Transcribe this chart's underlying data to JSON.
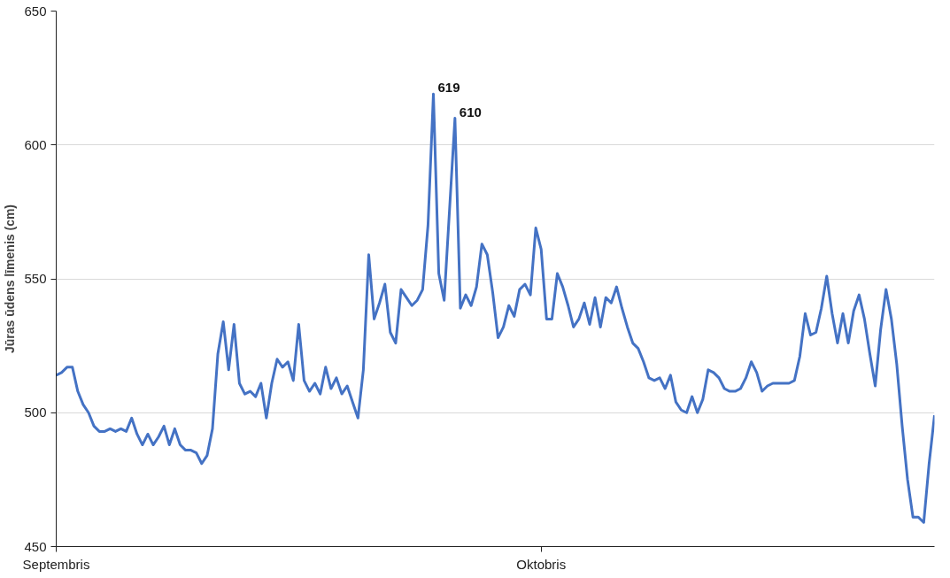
{
  "chart_data": {
    "type": "line",
    "ylabel": "Jūras ūdens līmenis (cm)",
    "categories": [
      "Septembris",
      null,
      null,
      null,
      null,
      null,
      null,
      null,
      null,
      null,
      null,
      null,
      null,
      null,
      null,
      null,
      null,
      null,
      null,
      null,
      null,
      null,
      null,
      null,
      null,
      null,
      null,
      null,
      null,
      null,
      null,
      null,
      null,
      null,
      null,
      null,
      null,
      null,
      null,
      null,
      null,
      null,
      null,
      null,
      null,
      null,
      null,
      null,
      null,
      null,
      null,
      null,
      null,
      null,
      null,
      null,
      null,
      null,
      null,
      null,
      null,
      null,
      null,
      null,
      null,
      null,
      null,
      null,
      null,
      null,
      null,
      null,
      null,
      null,
      null,
      null,
      null,
      null,
      null,
      null,
      null,
      null,
      null,
      null,
      null,
      null,
      null,
      null,
      null,
      null,
      "Oktobris",
      null,
      null,
      null,
      null,
      null,
      null,
      null,
      null,
      null,
      null,
      null,
      null,
      null,
      null,
      null,
      null,
      null,
      null,
      null,
      null,
      null,
      null,
      null,
      null,
      null,
      null,
      null,
      null,
      null,
      null,
      null,
      null,
      null,
      null,
      null,
      null,
      null,
      null,
      null,
      null,
      null,
      null,
      null,
      null,
      null,
      null,
      null,
      null,
      null,
      null,
      null,
      null,
      null,
      null,
      null,
      null,
      null,
      null,
      null,
      null,
      null,
      null,
      null,
      null,
      null,
      null,
      null,
      null,
      null,
      null,
      null,
      null,
      null
    ],
    "ylim": [
      450,
      650
    ],
    "yticks": [
      450,
      500,
      550,
      600,
      650
    ],
    "grid": "y",
    "marker": "none",
    "line_style": "solid",
    "series": [
      {
        "color": "#4472c4",
        "values": [
          514,
          515,
          517,
          517,
          508,
          503,
          500,
          495,
          493,
          493,
          494,
          493,
          494,
          493,
          498,
          492,
          488,
          492,
          488,
          491,
          495,
          488,
          494,
          488,
          486,
          486,
          485,
          481,
          484,
          494,
          522,
          534,
          516,
          533,
          511,
          507,
          508,
          506,
          511,
          498,
          511,
          520,
          517,
          519,
          512,
          533,
          512,
          508,
          511,
          507,
          517,
          509,
          513,
          507,
          510,
          504,
          498,
          516,
          559,
          535,
          541,
          548,
          530,
          526,
          546,
          543,
          540,
          542,
          546,
          570,
          619,
          552,
          542,
          576,
          610,
          539,
          544,
          540,
          547,
          563,
          559,
          545,
          528,
          532,
          540,
          536,
          546,
          548,
          544,
          569,
          561,
          535,
          535,
          552,
          547,
          540,
          532,
          535,
          541,
          533,
          543,
          532,
          543,
          541,
          547,
          539,
          532,
          526,
          524,
          519,
          513,
          512,
          513,
          509,
          514,
          504,
          501,
          500,
          506,
          500,
          505,
          516,
          515,
          513,
          509,
          508,
          508,
          509,
          513,
          519,
          515,
          508,
          510,
          511,
          511,
          511,
          511,
          512,
          521,
          537,
          529,
          530,
          539,
          551,
          537,
          526,
          537,
          526,
          538,
          544,
          535,
          522,
          510,
          531,
          546,
          535,
          518,
          495,
          475,
          461,
          461,
          459,
          481,
          499
        ],
        "value_labels": [
          null,
          null,
          null,
          null,
          null,
          null,
          null,
          null,
          null,
          null,
          null,
          null,
          null,
          null,
          null,
          null,
          null,
          null,
          null,
          null,
          null,
          null,
          null,
          null,
          null,
          null,
          null,
          null,
          null,
          null,
          null,
          null,
          null,
          null,
          null,
          null,
          null,
          null,
          null,
          null,
          null,
          null,
          null,
          null,
          null,
          null,
          null,
          null,
          null,
          null,
          null,
          null,
          null,
          null,
          null,
          null,
          null,
          null,
          null,
          null,
          null,
          null,
          null,
          null,
          null,
          null,
          null,
          null,
          null,
          null,
          "619",
          null,
          null,
          null,
          "610",
          null,
          null,
          null,
          null,
          null,
          null,
          null,
          null,
          null,
          null,
          null,
          null,
          null,
          null,
          null,
          null,
          null,
          null,
          null,
          null,
          null,
          null,
          null,
          null,
          null,
          null,
          null,
          null,
          null,
          null,
          null,
          null,
          null,
          null,
          null,
          null,
          null,
          null,
          null,
          null,
          null,
          null,
          null,
          null,
          null,
          null,
          null,
          null,
          null,
          null,
          null,
          null,
          null,
          null,
          null,
          null,
          null,
          null,
          null,
          null,
          null,
          null,
          null,
          null,
          null,
          null,
          null,
          null,
          null,
          null,
          null,
          null,
          null,
          null,
          null,
          null,
          null,
          null,
          null,
          null,
          null,
          null,
          null,
          null,
          null,
          null,
          null,
          null,
          null
        ]
      }
    ]
  }
}
